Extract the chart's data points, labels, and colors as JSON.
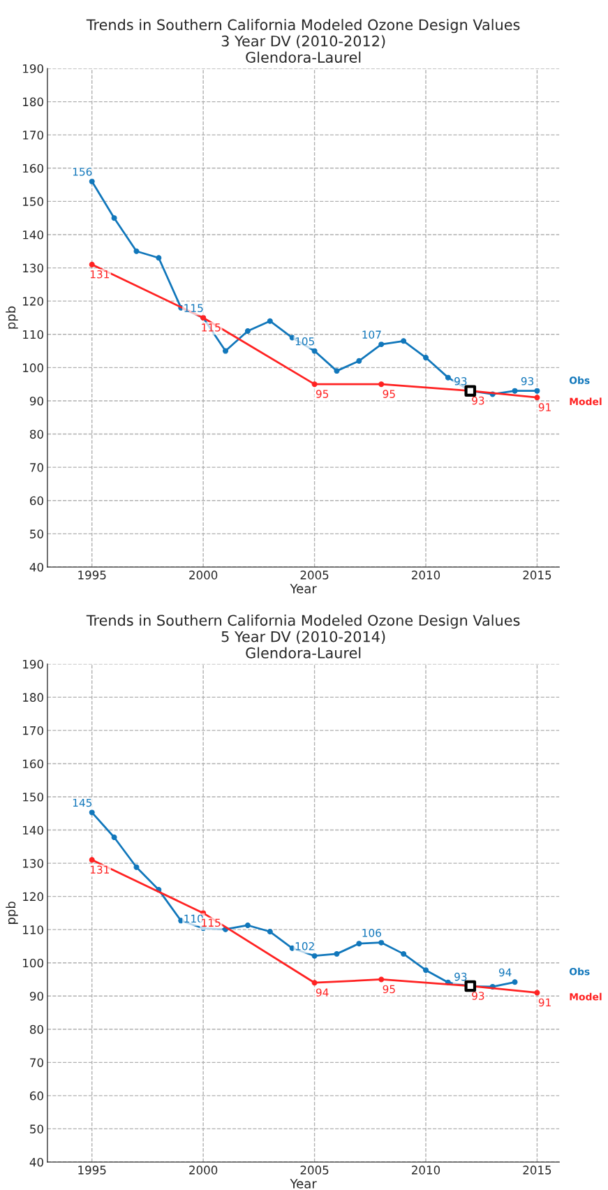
{
  "chart_data": [
    {
      "type": "line",
      "title": "Trends in Southern California Modeled Ozone Design Values\n3 Year DV (2010-2012)\nGlendora-Laurel",
      "xlabel": "Year",
      "ylabel": "ppb",
      "xlim": [
        1993,
        2016
      ],
      "xticks": [
        1995,
        2000,
        2005,
        2010,
        2015
      ],
      "ylim": [
        40,
        190
      ],
      "yticks": [
        40,
        50,
        60,
        70,
        80,
        90,
        100,
        110,
        120,
        130,
        140,
        150,
        160,
        170,
        180,
        190
      ],
      "grid": true,
      "marker": "circle",
      "line_style": "solid",
      "series": [
        {
          "name": "Obs",
          "color": "#1177bb",
          "x": [
            1995,
            1996,
            1997,
            1998,
            1999,
            2000,
            2001,
            2002,
            2003,
            2004,
            2005,
            2006,
            2007,
            2008,
            2009,
            2010,
            2011,
            2012,
            2013,
            2014,
            2015
          ],
          "values": [
            156,
            145,
            135,
            133,
            118,
            115,
            105,
            111,
            114,
            109,
            105,
            99,
            102,
            107,
            108,
            103,
            97,
            93,
            92,
            93,
            93
          ],
          "value_labels": [
            "156",
            null,
            null,
            null,
            null,
            "115",
            null,
            null,
            null,
            null,
            "105",
            null,
            null,
            "107",
            null,
            null,
            null,
            "93",
            null,
            null,
            "93"
          ]
        },
        {
          "name": "Model",
          "color": "#ff2222",
          "x": [
            1995,
            2000,
            2005,
            2008,
            2012,
            2015
          ],
          "values": [
            131,
            115,
            95,
            95,
            93,
            91
          ],
          "value_labels": [
            "131",
            "115",
            "95",
            "95",
            "93",
            "91"
          ]
        },
        {
          "type": "scatter",
          "color": "#000000",
          "marker": "square",
          "x": [
            2012
          ],
          "values": [
            93
          ]
        }
      ]
    },
    {
      "type": "line",
      "title": "Trends in Southern California Modeled Ozone Design Values\n5 Year DV (2010-2014)\nGlendora-Laurel",
      "xlabel": "Year",
      "ylabel": "ppb",
      "xlim": [
        1993,
        2016
      ],
      "xticks": [
        1995,
        2000,
        2005,
        2010,
        2015
      ],
      "ylim": [
        40,
        190
      ],
      "yticks": [
        40,
        50,
        60,
        70,
        80,
        90,
        100,
        110,
        120,
        130,
        140,
        150,
        160,
        170,
        180,
        190
      ],
      "grid": true,
      "marker": "circle",
      "line_style": "solid",
      "series": [
        {
          "name": "Obs",
          "color": "#1177bb",
          "x": [
            1995,
            1996,
            1997,
            1998,
            1999,
            2000,
            2001,
            2002,
            2003,
            2004,
            2005,
            2006,
            2007,
            2008,
            2009,
            2010,
            2011,
            2012,
            2013,
            2014
          ],
          "values": [
            145.3,
            137.8,
            128.8,
            122,
            112.7,
            110.4,
            110.1,
            111.3,
            109.4,
            104.4,
            102.1,
            102.7,
            105.8,
            106.1,
            102.7,
            97.8,
            94.1,
            92.9,
            92.8,
            94.2
          ],
          "value_labels": [
            "145",
            null,
            null,
            null,
            null,
            "110",
            null,
            null,
            null,
            null,
            "102",
            null,
            null,
            "106",
            null,
            null,
            null,
            "93",
            null,
            "94"
          ]
        },
        {
          "name": "Model",
          "color": "#ff2222",
          "x": [
            1995,
            2000,
            2005,
            2008,
            2012,
            2015
          ],
          "values": [
            131,
            115,
            94,
            95,
            93,
            91
          ],
          "value_labels": [
            "131",
            "115",
            "94",
            "95",
            "93",
            "91"
          ]
        },
        {
          "type": "scatter",
          "color": "#000000",
          "marker": "square",
          "x": [
            2012
          ],
          "values": [
            93
          ]
        }
      ]
    }
  ]
}
